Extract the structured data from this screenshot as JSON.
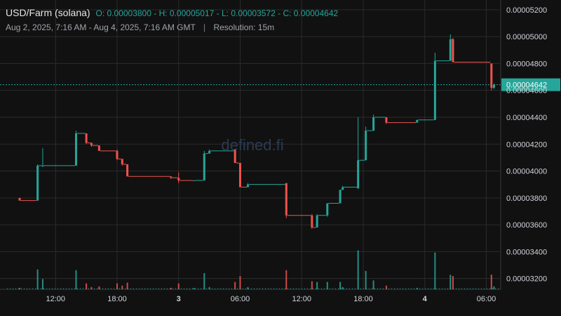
{
  "legend": {
    "symbol": "USD/Farm (solana)",
    "open_label": "O:",
    "open": "0.00003800",
    "high_label": "H:",
    "high": "0.00005017",
    "low_label": "L:",
    "low": "0.00003572",
    "close_label": "C:",
    "close": "0.00004642",
    "date_range": "Aug 2, 2025, 7:16 AM - Aug 4, 2025, 7:16 AM GMT",
    "separator": "|",
    "resolution": "Resolution: 15m"
  },
  "watermark": "defined.fi",
  "colors": {
    "background": "#111111",
    "up": "#26a69a",
    "down": "#ef5350",
    "grid": "#2b2b2b",
    "price_line": "#26a69a"
  },
  "chart_data": {
    "type": "candlestick",
    "yaxis": {
      "ticks": [
        "0.00005200",
        "0.00005000",
        "0.00004800",
        "0.00004600",
        "0.00004400",
        "0.00004200",
        "0.00004000",
        "0.00003800",
        "0.00003600",
        "0.00003400",
        "0.00003200"
      ],
      "ylim": [
        3.12e-05,
        5.22e-05
      ]
    },
    "xaxis": {
      "range": [
        "2025-08-02T07:16",
        "2025-08-04T07:16"
      ],
      "ticks": [
        {
          "label": "12:00",
          "time": "2025-08-02T12:00",
          "bold": false
        },
        {
          "label": "18:00",
          "time": "2025-08-02T18:00",
          "bold": false
        },
        {
          "label": "3",
          "time": "2025-08-03T00:00",
          "bold": true
        },
        {
          "label": "06:00",
          "time": "2025-08-03T06:00",
          "bold": false
        },
        {
          "label": "12:00",
          "time": "2025-08-03T12:00",
          "bold": false
        },
        {
          "label": "18:00",
          "time": "2025-08-03T18:00",
          "bold": false
        },
        {
          "label": "4",
          "time": "2025-08-04T00:00",
          "bold": true
        },
        {
          "label": "06:00",
          "time": "2025-08-04T06:00",
          "bold": false
        }
      ]
    },
    "last_price": {
      "value": 4.642e-05,
      "label": "0.00004642"
    },
    "candles": [
      {
        "t": "2025-08-02T08:30",
        "o": 3.8e-05,
        "h": 3.8e-05,
        "l": 3.78e-05,
        "c": 3.78e-05
      },
      {
        "t": "2025-08-02T10:15",
        "o": 3.78e-05,
        "h": 4.05e-05,
        "l": 3.78e-05,
        "c": 4.04e-05
      },
      {
        "t": "2025-08-02T10:45",
        "o": 4.04e-05,
        "h": 4.17e-05,
        "l": 4.03e-05,
        "c": 4.04e-05
      },
      {
        "t": "2025-08-02T14:00",
        "o": 4.04e-05,
        "h": 4.3e-05,
        "l": 4.04e-05,
        "c": 4.28e-05
      },
      {
        "t": "2025-08-02T15:00",
        "o": 4.28e-05,
        "h": 4.28e-05,
        "l": 4.2e-05,
        "c": 4.21e-05
      },
      {
        "t": "2025-08-02T15:30",
        "o": 4.21e-05,
        "h": 4.21e-05,
        "l": 4.18e-05,
        "c": 4.19e-05
      },
      {
        "t": "2025-08-02T16:15",
        "o": 4.19e-05,
        "h": 4.19e-05,
        "l": 4.15e-05,
        "c": 4.15e-05
      },
      {
        "t": "2025-08-02T18:00",
        "o": 4.15e-05,
        "h": 4.16e-05,
        "l": 4.08e-05,
        "c": 4.09e-05
      },
      {
        "t": "2025-08-02T18:30",
        "o": 4.09e-05,
        "h": 4.09e-05,
        "l": 4.04e-05,
        "c": 4.05e-05
      },
      {
        "t": "2025-08-02T19:00",
        "o": 4.05e-05,
        "h": 4.05e-05,
        "l": 3.96e-05,
        "c": 3.96e-05
      },
      {
        "t": "2025-08-02T23:15",
        "o": 3.96e-05,
        "h": 3.96e-05,
        "l": 3.94e-05,
        "c": 3.95e-05
      },
      {
        "t": "2025-08-03T00:00",
        "o": 3.95e-05,
        "h": 3.99e-05,
        "l": 3.91e-05,
        "c": 3.93e-05
      },
      {
        "t": "2025-08-03T01:30",
        "o": 3.93e-05,
        "h": 3.93e-05,
        "l": 3.93e-05,
        "c": 3.93e-05
      },
      {
        "t": "2025-08-03T02:30",
        "o": 3.93e-05,
        "h": 4.15e-05,
        "l": 3.93e-05,
        "c": 4.13e-05
      },
      {
        "t": "2025-08-03T03:00",
        "o": 4.13e-05,
        "h": 4.16e-05,
        "l": 4.13e-05,
        "c": 4.15e-05
      },
      {
        "t": "2025-08-03T05:30",
        "o": 4.16e-05,
        "h": 4.16e-05,
        "l": 4.06e-05,
        "c": 4.06e-05
      },
      {
        "t": "2025-08-03T06:00",
        "o": 4.06e-05,
        "h": 4.06e-05,
        "l": 3.88e-05,
        "c": 3.88e-05
      },
      {
        "t": "2025-08-03T06:45",
        "o": 3.88e-05,
        "h": 3.91e-05,
        "l": 3.88e-05,
        "c": 3.9e-05
      },
      {
        "t": "2025-08-03T10:30",
        "o": 3.91e-05,
        "h": 3.91e-05,
        "l": 3.65e-05,
        "c": 3.67e-05
      },
      {
        "t": "2025-08-03T13:00",
        "o": 3.67e-05,
        "h": 3.68e-05,
        "l": 3.57e-05,
        "c": 3.58e-05
      },
      {
        "t": "2025-08-03T13:30",
        "o": 3.58e-05,
        "h": 3.68e-05,
        "l": 3.58e-05,
        "c": 3.67e-05
      },
      {
        "t": "2025-08-03T14:30",
        "o": 3.67e-05,
        "h": 3.76e-05,
        "l": 3.66e-05,
        "c": 3.76e-05
      },
      {
        "t": "2025-08-03T15:45",
        "o": 3.76e-05,
        "h": 3.86e-05,
        "l": 3.76e-05,
        "c": 3.86e-05
      },
      {
        "t": "2025-08-03T16:00",
        "o": 3.86e-05,
        "h": 3.89e-05,
        "l": 3.86e-05,
        "c": 3.88e-05
      },
      {
        "t": "2025-08-03T17:30",
        "o": 3.87e-05,
        "h": 4.4e-05,
        "l": 3.87e-05,
        "c": 4.08e-05
      },
      {
        "t": "2025-08-03T18:15",
        "o": 4.08e-05,
        "h": 4.33e-05,
        "l": 4.08e-05,
        "c": 4.3e-05
      },
      {
        "t": "2025-08-03T19:00",
        "o": 4.3e-05,
        "h": 4.42e-05,
        "l": 4.3e-05,
        "c": 4.4e-05
      },
      {
        "t": "2025-08-03T20:15",
        "o": 4.4e-05,
        "h": 4.4e-05,
        "l": 4.35e-05,
        "c": 4.36e-05
      },
      {
        "t": "2025-08-03T23:15",
        "o": 4.36e-05,
        "h": 4.38e-05,
        "l": 4.36e-05,
        "c": 4.38e-05
      },
      {
        "t": "2025-08-04T01:00",
        "o": 4.38e-05,
        "h": 4.88e-05,
        "l": 4.38e-05,
        "c": 4.82e-05
      },
      {
        "t": "2025-08-04T02:30",
        "o": 4.82e-05,
        "h": 5.017e-05,
        "l": 4.82e-05,
        "c": 4.98e-05
      },
      {
        "t": "2025-08-04T02:45",
        "o": 4.98e-05,
        "h": 4.99e-05,
        "l": 4.81e-05,
        "c": 4.81e-05
      },
      {
        "t": "2025-08-04T06:30",
        "o": 4.8e-05,
        "h": 4.8e-05,
        "l": 4.6e-05,
        "c": 4.62e-05
      },
      {
        "t": "2025-08-04T06:45",
        "o": 4.62e-05,
        "h": 4.65e-05,
        "l": 4.61e-05,
        "c": 4.642e-05
      }
    ]
  }
}
